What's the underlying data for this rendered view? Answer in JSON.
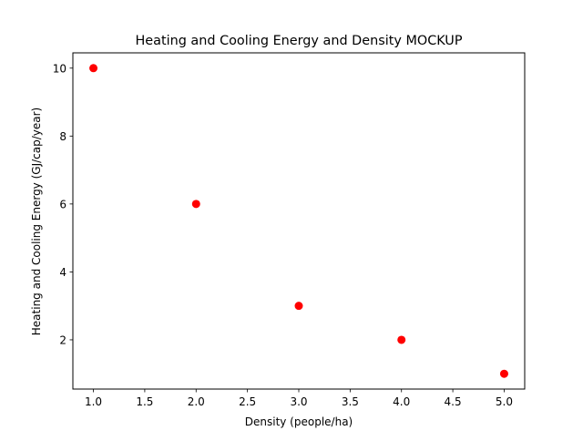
{
  "chart_data": {
    "type": "scatter",
    "title": "Heating and Cooling Energy and Density MOCKUP",
    "xlabel": "Density (people/ha)",
    "ylabel": "Heating and Cooling Energy (GJ/cap/year)",
    "x": [
      1.0,
      2.0,
      3.0,
      4.0,
      5.0
    ],
    "series": [
      {
        "values": [
          10,
          6,
          3,
          2,
          1
        ],
        "color": "#ff0000",
        "marker": "circle"
      }
    ],
    "xlim": [
      0.8,
      5.2
    ],
    "ylim": [
      0.55,
      10.45
    ],
    "xticks": [
      1.0,
      1.5,
      2.0,
      2.5,
      3.0,
      3.5,
      4.0,
      4.5,
      5.0
    ],
    "xtick_labels": [
      "1.0",
      "1.5",
      "2.0",
      "2.5",
      "3.0",
      "3.5",
      "4.0",
      "4.5",
      "5.0"
    ],
    "yticks": [
      2,
      4,
      6,
      8,
      10
    ],
    "ytick_labels": [
      "2",
      "4",
      "6",
      "8",
      "10"
    ],
    "grid": false,
    "legend": "none"
  }
}
